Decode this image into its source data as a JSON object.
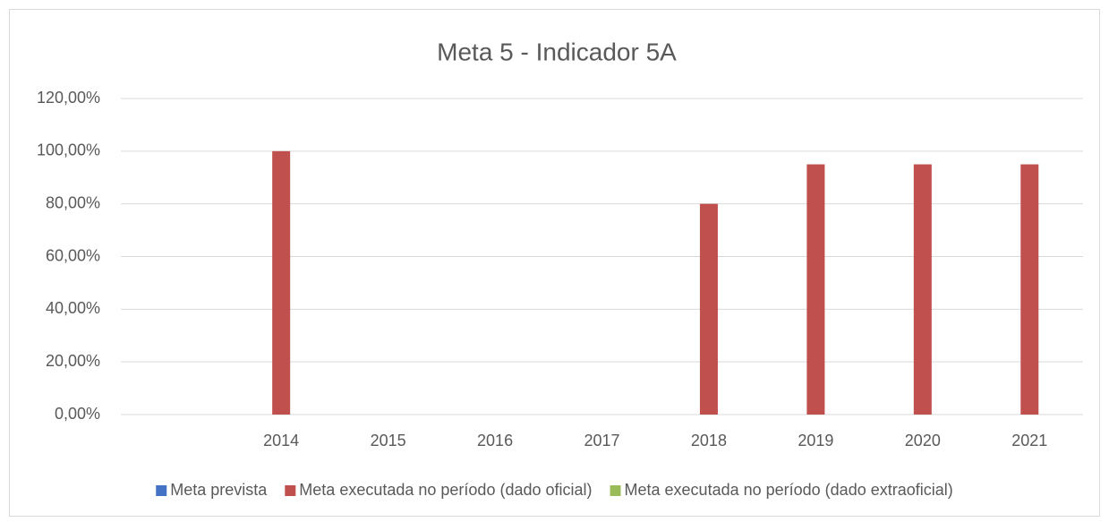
{
  "chart_data": {
    "type": "bar",
    "title": "Meta 5 - Indicador 5A",
    "categories": [
      null,
      "2014",
      "2015",
      "2016",
      "2017",
      "2018",
      "2019",
      "2020",
      "2021"
    ],
    "series": [
      {
        "name": "Meta prevista",
        "color": "#4472c4",
        "values": [
          null,
          null,
          null,
          null,
          null,
          null,
          null,
          null,
          null
        ]
      },
      {
        "name": "Meta executada no período (dado oficial)",
        "color": "#c0504d",
        "values": [
          null,
          100,
          null,
          null,
          null,
          80,
          95,
          95,
          95
        ]
      },
      {
        "name": "Meta executada no período (dado extraoficial)",
        "color": "#9bbb59",
        "values": [
          null,
          null,
          null,
          null,
          null,
          null,
          null,
          null,
          null
        ]
      }
    ],
    "ylim": [
      0,
      120
    ],
    "yticks": [
      {
        "value": 0,
        "label": "0,00%"
      },
      {
        "value": 20,
        "label": "20,00%"
      },
      {
        "value": 40,
        "label": "40,00%"
      },
      {
        "value": 60,
        "label": "60,00%"
      },
      {
        "value": 80,
        "label": "80,00%"
      },
      {
        "value": 100,
        "label": "100,00%"
      },
      {
        "value": 120,
        "label": "120,00%"
      }
    ],
    "grid": true,
    "legend": "bottom"
  }
}
